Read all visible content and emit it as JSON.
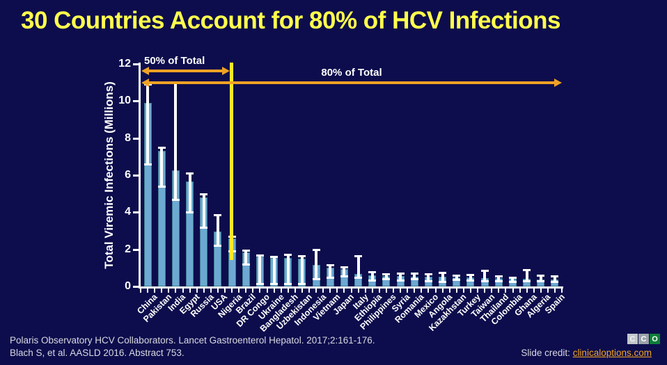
{
  "title": "30 Countries Account for 80% of HCV Infections",
  "annotations": {
    "fifty_label": "50% of Total",
    "eighty_label": "80% of Total",
    "divider_color": "#ffe826",
    "arrow_color": "#efa224"
  },
  "chart_data": {
    "type": "bar",
    "ylabel": "Total Viremic Infections (Millions)",
    "ylim": [
      0,
      12
    ],
    "yticks": [
      0,
      2,
      4,
      6,
      8,
      10,
      12
    ],
    "grid": false,
    "bar_color": "#6da9d2",
    "error_bar_color": "#ffffff",
    "divider_bar_index": 6,
    "categories": [
      "China",
      "Pakistan",
      "India",
      "Egypt",
      "Russia",
      "USA",
      "Nigeria",
      "Brazil",
      "DR Congo",
      "Ukraine",
      "Bangladesh",
      "Uzbekistan",
      "Indonesia",
      "Vietnam",
      "Japan",
      "Italy",
      "Ethiopia",
      "Philippines",
      "Syria",
      "Romania",
      "Mexico",
      "Angola",
      "Kazakhstan",
      "Turkey",
      "Taiwan",
      "Thailand",
      "Colombia",
      "Ghana",
      "Algeria",
      "Spain"
    ],
    "values": [
      9.9,
      7.3,
      6.25,
      5.65,
      4.8,
      2.95,
      2.6,
      1.85,
      1.6,
      1.55,
      1.55,
      1.5,
      1.15,
      1.0,
      0.92,
      0.68,
      0.6,
      0.56,
      0.55,
      0.53,
      0.52,
      0.51,
      0.5,
      0.48,
      0.45,
      0.44,
      0.4,
      0.4,
      0.38,
      0.36
    ],
    "error_low": [
      6.6,
      5.4,
      4.7,
      4.0,
      3.2,
      2.2,
      1.9,
      1.2,
      0.15,
      0.15,
      0.15,
      0.15,
      0.4,
      0.5,
      0.55,
      0.5,
      0.35,
      0.4,
      0.33,
      0.42,
      0.3,
      0.25,
      0.38,
      0.32,
      0.3,
      0.3,
      0.25,
      0.3,
      0.3,
      0.28
    ],
    "error_high": [
      10.9,
      7.5,
      11.0,
      6.1,
      5.0,
      3.85,
      2.7,
      1.95,
      1.7,
      1.62,
      1.72,
      1.65,
      2.0,
      1.15,
      1.05,
      1.65,
      0.77,
      0.68,
      0.73,
      0.7,
      0.68,
      0.75,
      0.6,
      0.65,
      0.88,
      0.55,
      0.48,
      0.9,
      0.6,
      0.55
    ]
  },
  "footer": {
    "line1": "Polaris Observatory HCV Collaborators. Lancet Gastroenterol Hepatol. 2017;2:161-176.",
    "line2": "Blach S, et al. AASLD 2016. Abstract 753.",
    "credit_label": "Slide credit: ",
    "credit_link": "clinicaloptions.com"
  },
  "logo": {
    "letter1": "C",
    "letter2": "C",
    "letter3": "O"
  }
}
